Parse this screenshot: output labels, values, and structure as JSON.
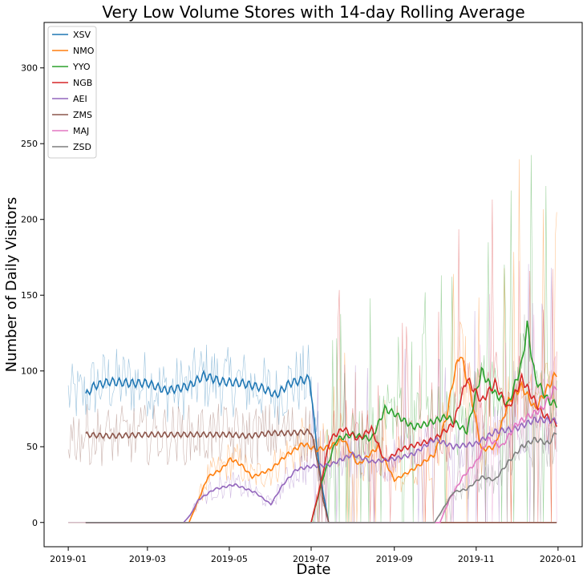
{
  "chart_data": {
    "type": "line",
    "title": "Very Low Volume Stores with 14-day Rolling Average",
    "xlabel": "Date",
    "ylabel": "Number of Daily Visitors",
    "xlim": [
      "2018-12-14",
      "2020-01-19"
    ],
    "ylim": [
      -16,
      330
    ],
    "x_ticks": [
      "2019-01",
      "2019-03",
      "2019-05",
      "2019-07",
      "2019-09",
      "2019-11",
      "2020-01"
    ],
    "y_ticks": [
      0,
      50,
      100,
      150,
      200,
      250,
      300
    ],
    "legend": "top-left",
    "grid": false,
    "series": [
      {
        "name": "XSV",
        "color": "#1f77b4",
        "points": [
          [
            "2019-01-14",
            84
          ],
          [
            "2019-01-20",
            90
          ],
          [
            "2019-02-01",
            93
          ],
          [
            "2019-02-15",
            92
          ],
          [
            "2019-03-01",
            92
          ],
          [
            "2019-03-15",
            87
          ],
          [
            "2019-04-01",
            90
          ],
          [
            "2019-04-12",
            97
          ],
          [
            "2019-04-25",
            93
          ],
          [
            "2019-05-10",
            92
          ],
          [
            "2019-05-25",
            89
          ],
          [
            "2019-06-05",
            84
          ],
          [
            "2019-06-15",
            92
          ],
          [
            "2019-06-30",
            95
          ],
          [
            "2019-07-04",
            60
          ],
          [
            "2019-07-08",
            30
          ],
          [
            "2019-07-14",
            0
          ]
        ]
      },
      {
        "name": "NMO",
        "color": "#ff7f0e",
        "points": [
          [
            "2019-01-14",
            0
          ],
          [
            "2019-04-01",
            0
          ],
          [
            "2019-04-08",
            15
          ],
          [
            "2019-04-15",
            30
          ],
          [
            "2019-04-25",
            35
          ],
          [
            "2019-05-02",
            42
          ],
          [
            "2019-05-10",
            38
          ],
          [
            "2019-05-18",
            30
          ],
          [
            "2019-06-01",
            35
          ],
          [
            "2019-06-12",
            44
          ],
          [
            "2019-06-25",
            52
          ],
          [
            "2019-07-05",
            48
          ],
          [
            "2019-07-15",
            50
          ],
          [
            "2019-07-25",
            55
          ],
          [
            "2019-08-05",
            38
          ],
          [
            "2019-08-20",
            50
          ],
          [
            "2019-09-01",
            28
          ],
          [
            "2019-09-15",
            35
          ],
          [
            "2019-10-01",
            45
          ],
          [
            "2019-10-10",
            70
          ],
          [
            "2019-10-15",
            95
          ],
          [
            "2019-10-20",
            112
          ],
          [
            "2019-10-28",
            85
          ],
          [
            "2019-11-05",
            48
          ],
          [
            "2019-11-15",
            50
          ],
          [
            "2019-11-25",
            80
          ],
          [
            "2019-12-05",
            90
          ],
          [
            "2019-12-15",
            75
          ],
          [
            "2019-12-25",
            90
          ],
          [
            "2019-12-31",
            99
          ]
        ]
      },
      {
        "name": "YYO",
        "color": "#2ca02c",
        "points": [
          [
            "2019-01-14",
            0
          ],
          [
            "2019-07-01",
            0
          ],
          [
            "2019-07-10",
            30
          ],
          [
            "2019-07-20",
            55
          ],
          [
            "2019-08-01",
            58
          ],
          [
            "2019-08-15",
            55
          ],
          [
            "2019-08-25",
            75
          ],
          [
            "2019-09-01",
            72
          ],
          [
            "2019-09-15",
            63
          ],
          [
            "2019-09-25",
            65
          ],
          [
            "2019-10-10",
            70
          ],
          [
            "2019-10-25",
            60
          ],
          [
            "2019-11-05",
            100
          ],
          [
            "2019-11-15",
            85
          ],
          [
            "2019-11-25",
            78
          ],
          [
            "2019-12-05",
            105
          ],
          [
            "2019-12-09",
            130
          ],
          [
            "2019-12-15",
            95
          ],
          [
            "2019-12-25",
            80
          ],
          [
            "2019-12-31",
            78
          ]
        ]
      },
      {
        "name": "NGB",
        "color": "#d62728",
        "points": [
          [
            "2019-01-14",
            0
          ],
          [
            "2019-07-01",
            0
          ],
          [
            "2019-07-08",
            25
          ],
          [
            "2019-07-15",
            55
          ],
          [
            "2019-07-25",
            62
          ],
          [
            "2019-08-05",
            55
          ],
          [
            "2019-08-15",
            62
          ],
          [
            "2019-08-25",
            40
          ],
          [
            "2019-09-05",
            48
          ],
          [
            "2019-09-20",
            52
          ],
          [
            "2019-10-01",
            55
          ],
          [
            "2019-10-15",
            65
          ],
          [
            "2019-10-25",
            95
          ],
          [
            "2019-11-05",
            80
          ],
          [
            "2019-11-15",
            92
          ],
          [
            "2019-11-25",
            75
          ],
          [
            "2019-12-05",
            95
          ],
          [
            "2019-12-20",
            72
          ],
          [
            "2019-12-31",
            65
          ]
        ]
      },
      {
        "name": "AEI",
        "color": "#9467bd",
        "points": [
          [
            "2019-01-14",
            0
          ],
          [
            "2019-03-28",
            0
          ],
          [
            "2019-04-02",
            5
          ],
          [
            "2019-04-08",
            15
          ],
          [
            "2019-04-20",
            22
          ],
          [
            "2019-05-05",
            25
          ],
          [
            "2019-05-20",
            20
          ],
          [
            "2019-06-01",
            12
          ],
          [
            "2019-06-10",
            25
          ],
          [
            "2019-06-20",
            35
          ],
          [
            "2019-07-01",
            37
          ],
          [
            "2019-07-15",
            38
          ],
          [
            "2019-08-01",
            45
          ],
          [
            "2019-08-15",
            40
          ],
          [
            "2019-09-01",
            42
          ],
          [
            "2019-09-15",
            45
          ],
          [
            "2019-10-01",
            55
          ],
          [
            "2019-10-15",
            50
          ],
          [
            "2019-11-01",
            52
          ],
          [
            "2019-11-15",
            60
          ],
          [
            "2019-12-01",
            62
          ],
          [
            "2019-12-15",
            68
          ],
          [
            "2019-12-31",
            67
          ]
        ]
      },
      {
        "name": "ZMS",
        "color": "#8c564b",
        "points": [
          [
            "2019-01-14",
            58
          ],
          [
            "2019-02-01",
            57
          ],
          [
            "2019-03-01",
            58
          ],
          [
            "2019-04-01",
            58
          ],
          [
            "2019-05-01",
            58
          ],
          [
            "2019-05-15",
            57
          ],
          [
            "2019-06-01",
            59
          ],
          [
            "2019-06-15",
            59
          ],
          [
            "2019-07-01",
            60
          ],
          [
            "2019-07-06",
            40
          ],
          [
            "2019-07-10",
            15
          ],
          [
            "2019-07-14",
            0
          ],
          [
            "2019-12-31",
            0
          ]
        ]
      },
      {
        "name": "MAJ",
        "color": "#e377c2",
        "points": [
          [
            "2019-01-14",
            0
          ],
          [
            "2019-10-05",
            0
          ],
          [
            "2019-10-12",
            15
          ],
          [
            "2019-10-22",
            30
          ],
          [
            "2019-11-01",
            40
          ],
          [
            "2019-11-10",
            55
          ],
          [
            "2019-11-20",
            50
          ],
          [
            "2019-12-01",
            65
          ],
          [
            "2019-12-10",
            70
          ],
          [
            "2019-12-20",
            75
          ],
          [
            "2019-12-31",
            90
          ]
        ]
      },
      {
        "name": "ZSD",
        "color": "#7f7f7f",
        "points": [
          [
            "2019-01-14",
            0
          ],
          [
            "2019-10-01",
            0
          ],
          [
            "2019-10-08",
            10
          ],
          [
            "2019-10-15",
            20
          ],
          [
            "2019-10-25",
            22
          ],
          [
            "2019-11-05",
            30
          ],
          [
            "2019-11-15",
            28
          ],
          [
            "2019-11-25",
            40
          ],
          [
            "2019-12-05",
            50
          ],
          [
            "2019-12-15",
            55
          ],
          [
            "2019-12-25",
            52
          ],
          [
            "2019-12-31",
            60
          ]
        ]
      }
    ]
  }
}
